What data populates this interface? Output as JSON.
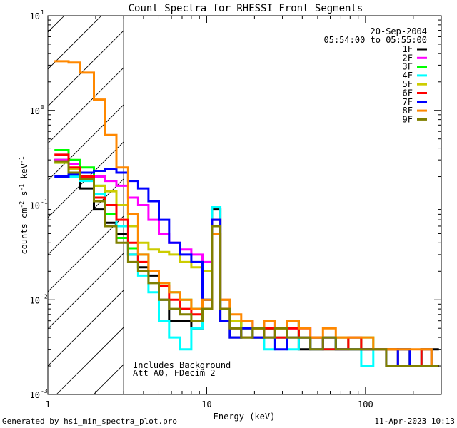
{
  "chart_data": {
    "type": "line",
    "title": "Count Spectra for RHESSI Front Segments",
    "xlabel": "Energy (keV)",
    "ylabel_parts": [
      "counts cm",
      "-2",
      " s",
      "-1",
      " keV",
      "-1"
    ],
    "xscale": "log",
    "yscale": "log",
    "xlim": [
      1,
      300
    ],
    "ylim": [
      0.001,
      10
    ],
    "x_ticks": [
      {
        "v": 1,
        "label": "1"
      },
      {
        "v": 10,
        "label": "10"
      },
      {
        "v": 100,
        "label": "100"
      }
    ],
    "y_ticks": [
      {
        "v": 0.001,
        "base": "10",
        "exp": "-3"
      },
      {
        "v": 0.01,
        "base": "10",
        "exp": "-2"
      },
      {
        "v": 0.1,
        "base": "10",
        "exp": "-1"
      },
      {
        "v": 1,
        "base": "10",
        "exp": "0"
      },
      {
        "v": 10,
        "base": "10",
        "exp": "1"
      }
    ],
    "shaded_region": {
      "x_from": 1,
      "x_to": 3,
      "pattern": "diagonal-hatch"
    },
    "date": "20-Sep-2004",
    "time_range": "05:54:00 to 05:55:00",
    "annotations": [
      "Includes Background",
      "Att A0, FDecim 2"
    ],
    "series": [
      {
        "name": "1F",
        "color": "#000000",
        "values": [
          0.3,
          0.2,
          0.15,
          0.09,
          0.065,
          0.05,
          0.03,
          0.022,
          0.018,
          0.01,
          0.006,
          0.006,
          0.005,
          0.01,
          0.09,
          0.006,
          0.004,
          0.006,
          0.004,
          0.005,
          0.004,
          0.006,
          0.003,
          0.004,
          0.004,
          0.003,
          0.004,
          0.003,
          0.003,
          0.003,
          0.003,
          0.002,
          0.003,
          0.003
        ]
      },
      {
        "name": "2F",
        "color": "#ff00ff",
        "values": [
          0.3,
          0.27,
          0.22,
          0.2,
          0.18,
          0.16,
          0.12,
          0.1,
          0.07,
          0.05,
          0.04,
          0.034,
          0.03,
          0.025,
          0.05,
          0.01,
          0.006,
          0.006,
          0.005,
          0.006,
          0.004,
          0.005,
          0.005,
          0.004,
          0.004,
          0.004,
          0.003,
          0.003,
          0.003,
          0.003,
          0.003,
          0.002,
          0.003,
          0.002
        ]
      },
      {
        "name": "3F",
        "color": "#00ff00",
        "values": [
          0.38,
          0.3,
          0.25,
          0.16,
          0.08,
          0.045,
          0.035,
          0.03,
          0.02,
          0.015,
          0.012,
          0.01,
          0.008,
          0.008,
          0.05,
          0.008,
          0.006,
          0.005,
          0.004,
          0.005,
          0.004,
          0.006,
          0.004,
          0.004,
          0.003,
          0.004,
          0.003,
          0.004,
          0.003,
          0.003,
          0.003,
          0.002,
          0.003,
          0.002
        ]
      },
      {
        "name": "4F",
        "color": "#00ffff",
        "values": [
          0.28,
          0.2,
          0.18,
          0.13,
          0.1,
          0.06,
          0.03,
          0.018,
          0.012,
          0.006,
          0.004,
          0.003,
          0.005,
          0.01,
          0.095,
          0.008,
          0.005,
          0.004,
          0.004,
          0.003,
          0.004,
          0.003,
          0.004,
          0.003,
          0.003,
          0.003,
          0.003,
          0.002,
          0.003,
          0.003,
          0.002,
          0.002,
          0.003,
          0.002
        ]
      },
      {
        "name": "5F",
        "color": "#cccc00",
        "values": [
          0.28,
          0.24,
          0.2,
          0.16,
          0.14,
          0.1,
          0.06,
          0.04,
          0.034,
          0.032,
          0.03,
          0.025,
          0.022,
          0.02,
          0.05,
          0.01,
          0.006,
          0.005,
          0.005,
          0.004,
          0.005,
          0.004,
          0.004,
          0.003,
          0.004,
          0.004,
          0.003,
          0.003,
          0.003,
          0.003,
          0.003,
          0.002,
          0.002,
          0.002
        ]
      },
      {
        "name": "6F",
        "color": "#ff0000",
        "values": [
          0.34,
          0.25,
          0.2,
          0.12,
          0.1,
          0.07,
          0.04,
          0.025,
          0.02,
          0.014,
          0.01,
          0.008,
          0.007,
          0.008,
          0.07,
          0.008,
          0.005,
          0.004,
          0.004,
          0.005,
          0.004,
          0.005,
          0.004,
          0.004,
          0.003,
          0.003,
          0.004,
          0.003,
          0.003,
          0.003,
          0.002,
          0.002,
          0.003,
          0.002
        ]
      },
      {
        "name": "7F",
        "color": "#0000ff",
        "values": [
          0.2,
          0.21,
          0.22,
          0.23,
          0.24,
          0.22,
          0.18,
          0.15,
          0.11,
          0.07,
          0.04,
          0.03,
          0.025,
          0.01,
          0.07,
          0.006,
          0.004,
          0.005,
          0.004,
          0.004,
          0.003,
          0.004,
          0.004,
          0.003,
          0.004,
          0.003,
          0.003,
          0.003,
          0.003,
          0.002,
          0.003,
          0.002,
          0.002,
          0.002
        ]
      },
      {
        "name": "8F",
        "color": "#ff8800",
        "values": [
          3.3,
          3.2,
          2.5,
          1.3,
          0.55,
          0.25,
          0.08,
          0.03,
          0.02,
          0.015,
          0.012,
          0.01,
          0.008,
          0.01,
          0.05,
          0.01,
          0.007,
          0.006,
          0.005,
          0.006,
          0.005,
          0.006,
          0.005,
          0.004,
          0.005,
          0.004,
          0.004,
          0.004,
          0.003,
          0.003,
          0.003,
          0.003,
          0.003,
          0.002
        ]
      },
      {
        "name": "9F",
        "color": "#808000",
        "values": [
          0.29,
          0.22,
          0.19,
          0.11,
          0.06,
          0.04,
          0.025,
          0.02,
          0.015,
          0.01,
          0.008,
          0.007,
          0.006,
          0.008,
          0.06,
          0.008,
          0.005,
          0.004,
          0.005,
          0.004,
          0.005,
          0.004,
          0.004,
          0.003,
          0.004,
          0.003,
          0.003,
          0.003,
          0.003,
          0.002,
          0.002,
          0.002,
          0.002,
          0.002
        ]
      }
    ],
    "energy_bin_edges_keV": [
      1.1,
      1.35,
      1.6,
      1.95,
      2.3,
      2.7,
      3.2,
      3.7,
      4.3,
      5.0,
      5.8,
      6.8,
      8.0,
      9.4,
      10.8,
      12.2,
      14.0,
      16.5,
      19.5,
      23.0,
      27.0,
      32.0,
      38.0,
      45.0,
      54.0,
      65.0,
      78.0,
      94.0,
      112.0,
      135.0,
      160.0,
      190.0,
      225.0,
      260.0,
      290.0
    ]
  },
  "footer": {
    "generated_by": "Generated by hsi_min_spectra_plot.pro",
    "timestamp": "11-Apr-2023 10:13"
  }
}
